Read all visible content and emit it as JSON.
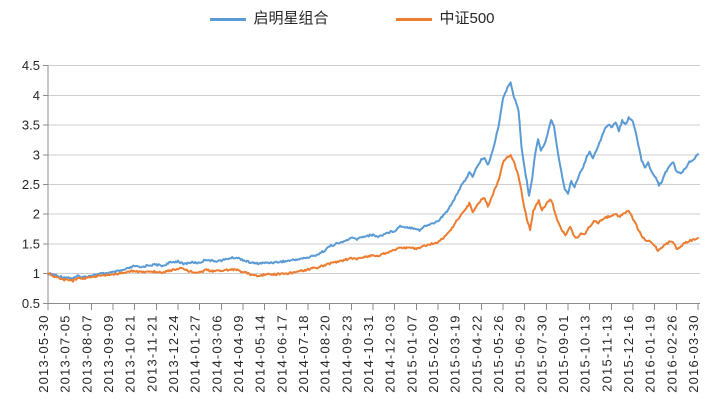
{
  "legend": {
    "items": [
      {
        "label": "启明星组合",
        "color": "#5B9BD5"
      },
      {
        "label": "中证500",
        "color": "#ED7D31"
      }
    ]
  },
  "chart_data": {
    "type": "line",
    "title": "",
    "xlabel": "",
    "ylabel": "",
    "grid": true,
    "legend_position": "top",
    "ylim": [
      0.5,
      4.5
    ],
    "ytick_step": 0.5,
    "ytick_labels": [
      "0.5",
      "1",
      "1.5",
      "2",
      "2.5",
      "3",
      "3.5",
      "4",
      "4.5"
    ],
    "categories": [
      "2013-05-30",
      "2013-07-05",
      "2013-08-07",
      "2013-09-09",
      "2013-10-21",
      "2013-11-21",
      "2013-12-24",
      "2014-01-27",
      "2014-03-06",
      "2014-04-09",
      "2014-05-14",
      "2014-06-17",
      "2014-07-18",
      "2014-08-20",
      "2014-09-23",
      "2014-10-31",
      "2014-12-03",
      "2015-01-07",
      "2015-02-09",
      "2015-03-19",
      "2015-04-22",
      "2015-05-26",
      "2015-06-29",
      "2015-07-30",
      "2015-09-01",
      "2015-10-13",
      "2015-11-13",
      "2015-12-16",
      "2016-01-19",
      "2016-02-26",
      "2016-03-30"
    ],
    "x_encoding": "points are [category_tick_index, net_value]; tick index 0 = 2013-05-30, 30 = 2016-03-30",
    "series": [
      {
        "name": "启明星组合",
        "color": "#5B9BD5",
        "points": [
          [
            0,
            1.0
          ],
          [
            0.2,
            0.99
          ],
          [
            0.45,
            0.96
          ],
          [
            0.7,
            0.94
          ],
          [
            1.0,
            0.93
          ],
          [
            1.15,
            0.92
          ],
          [
            1.4,
            0.96
          ],
          [
            1.6,
            0.94
          ],
          [
            2.0,
            0.97
          ],
          [
            2.5,
            1.0
          ],
          [
            3.0,
            1.02
          ],
          [
            3.5,
            1.06
          ],
          [
            3.8,
            1.1
          ],
          [
            4.0,
            1.13
          ],
          [
            4.25,
            1.1
          ],
          [
            4.6,
            1.14
          ],
          [
            5.0,
            1.15
          ],
          [
            5.3,
            1.13
          ],
          [
            5.6,
            1.18
          ],
          [
            6.0,
            1.21
          ],
          [
            6.25,
            1.16
          ],
          [
            6.6,
            1.19
          ],
          [
            7.0,
            1.18
          ],
          [
            7.3,
            1.24
          ],
          [
            7.6,
            1.21
          ],
          [
            8.0,
            1.22
          ],
          [
            8.4,
            1.26
          ],
          [
            8.7,
            1.27
          ],
          [
            9.0,
            1.23
          ],
          [
            9.3,
            1.19
          ],
          [
            9.6,
            1.17
          ],
          [
            10.0,
            1.18
          ],
          [
            10.5,
            1.19
          ],
          [
            11.0,
            1.21
          ],
          [
            11.5,
            1.24
          ],
          [
            12.0,
            1.27
          ],
          [
            12.5,
            1.33
          ],
          [
            12.8,
            1.4
          ],
          [
            13.0,
            1.46
          ],
          [
            13.3,
            1.5
          ],
          [
            13.6,
            1.53
          ],
          [
            14.0,
            1.6
          ],
          [
            14.25,
            1.58
          ],
          [
            14.6,
            1.63
          ],
          [
            15.0,
            1.65
          ],
          [
            15.25,
            1.62
          ],
          [
            15.6,
            1.68
          ],
          [
            16.0,
            1.72
          ],
          [
            16.25,
            1.8
          ],
          [
            16.6,
            1.78
          ],
          [
            17.0,
            1.76
          ],
          [
            17.15,
            1.73
          ],
          [
            17.4,
            1.8
          ],
          [
            17.7,
            1.84
          ],
          [
            18.0,
            1.88
          ],
          [
            18.35,
            2.02
          ],
          [
            18.7,
            2.22
          ],
          [
            19.0,
            2.43
          ],
          [
            19.3,
            2.6
          ],
          [
            19.45,
            2.72
          ],
          [
            19.6,
            2.62
          ],
          [
            19.8,
            2.8
          ],
          [
            20.0,
            2.92
          ],
          [
            20.15,
            2.95
          ],
          [
            20.3,
            2.82
          ],
          [
            20.55,
            3.1
          ],
          [
            20.8,
            3.5
          ],
          [
            21.0,
            3.95
          ],
          [
            21.15,
            4.08
          ],
          [
            21.35,
            4.23
          ],
          [
            21.5,
            3.98
          ],
          [
            21.62,
            3.85
          ],
          [
            21.72,
            3.74
          ],
          [
            21.85,
            3.15
          ],
          [
            22.0,
            2.76
          ],
          [
            22.1,
            2.55
          ],
          [
            22.2,
            2.32
          ],
          [
            22.35,
            2.62
          ],
          [
            22.5,
            3.05
          ],
          [
            22.62,
            3.27
          ],
          [
            22.75,
            3.07
          ],
          [
            22.95,
            3.2
          ],
          [
            23.1,
            3.42
          ],
          [
            23.22,
            3.6
          ],
          [
            23.35,
            3.48
          ],
          [
            23.5,
            3.12
          ],
          [
            23.68,
            2.74
          ],
          [
            23.85,
            2.42
          ],
          [
            24.0,
            2.35
          ],
          [
            24.15,
            2.56
          ],
          [
            24.3,
            2.46
          ],
          [
            24.5,
            2.65
          ],
          [
            24.7,
            2.8
          ],
          [
            24.88,
            2.98
          ],
          [
            25.0,
            3.06
          ],
          [
            25.15,
            2.93
          ],
          [
            25.35,
            3.12
          ],
          [
            25.5,
            3.25
          ],
          [
            25.7,
            3.45
          ],
          [
            25.9,
            3.5
          ],
          [
            26.0,
            3.46
          ],
          [
            26.2,
            3.55
          ],
          [
            26.35,
            3.4
          ],
          [
            26.5,
            3.58
          ],
          [
            26.65,
            3.5
          ],
          [
            26.8,
            3.63
          ],
          [
            27.0,
            3.55
          ],
          [
            27.2,
            3.25
          ],
          [
            27.4,
            2.9
          ],
          [
            27.55,
            2.8
          ],
          [
            27.7,
            2.86
          ],
          [
            27.85,
            2.72
          ],
          [
            28.0,
            2.65
          ],
          [
            28.2,
            2.49
          ],
          [
            28.35,
            2.56
          ],
          [
            28.5,
            2.7
          ],
          [
            28.7,
            2.82
          ],
          [
            28.85,
            2.88
          ],
          [
            29.0,
            2.72
          ],
          [
            29.2,
            2.68
          ],
          [
            29.4,
            2.77
          ],
          [
            29.6,
            2.88
          ],
          [
            29.8,
            2.93
          ],
          [
            30.0,
            3.01
          ]
        ]
      },
      {
        "name": "中证500",
        "color": "#ED7D31",
        "points": [
          [
            0,
            1.0
          ],
          [
            0.2,
            0.97
          ],
          [
            0.45,
            0.93
          ],
          [
            0.7,
            0.9
          ],
          [
            1.0,
            0.89
          ],
          [
            1.15,
            0.88
          ],
          [
            1.4,
            0.92
          ],
          [
            1.6,
            0.91
          ],
          [
            2.0,
            0.94
          ],
          [
            2.5,
            0.97
          ],
          [
            3.0,
            0.99
          ],
          [
            3.5,
            1.01
          ],
          [
            3.8,
            1.04
          ],
          [
            4.0,
            1.05
          ],
          [
            4.25,
            1.02
          ],
          [
            4.6,
            1.04
          ],
          [
            5.0,
            1.03
          ],
          [
            5.3,
            1.02
          ],
          [
            5.6,
            1.05
          ],
          [
            6.0,
            1.08
          ],
          [
            6.2,
            1.1
          ],
          [
            6.5,
            1.04
          ],
          [
            7.0,
            1.02
          ],
          [
            7.3,
            1.06
          ],
          [
            7.6,
            1.04
          ],
          [
            8.0,
            1.05
          ],
          [
            8.4,
            1.07
          ],
          [
            8.7,
            1.06
          ],
          [
            9.0,
            1.03
          ],
          [
            9.3,
            0.99
          ],
          [
            9.6,
            0.97
          ],
          [
            10.0,
            0.98
          ],
          [
            10.5,
            0.99
          ],
          [
            11.0,
            1.0
          ],
          [
            11.5,
            1.03
          ],
          [
            12.0,
            1.07
          ],
          [
            12.5,
            1.11
          ],
          [
            13.0,
            1.17
          ],
          [
            13.5,
            1.21
          ],
          [
            14.0,
            1.26
          ],
          [
            14.25,
            1.24
          ],
          [
            14.6,
            1.28
          ],
          [
            15.0,
            1.31
          ],
          [
            15.25,
            1.29
          ],
          [
            15.6,
            1.35
          ],
          [
            16.0,
            1.4
          ],
          [
            16.25,
            1.44
          ],
          [
            16.6,
            1.43
          ],
          [
            17.0,
            1.42
          ],
          [
            17.35,
            1.46
          ],
          [
            17.7,
            1.5
          ],
          [
            18.0,
            1.53
          ],
          [
            18.35,
            1.63
          ],
          [
            18.7,
            1.8
          ],
          [
            19.0,
            1.96
          ],
          [
            19.3,
            2.1
          ],
          [
            19.45,
            2.18
          ],
          [
            19.6,
            2.04
          ],
          [
            19.8,
            2.15
          ],
          [
            20.0,
            2.24
          ],
          [
            20.15,
            2.28
          ],
          [
            20.3,
            2.13
          ],
          [
            20.55,
            2.35
          ],
          [
            20.8,
            2.58
          ],
          [
            21.0,
            2.88
          ],
          [
            21.15,
            2.94
          ],
          [
            21.35,
            3.0
          ],
          [
            21.5,
            2.88
          ],
          [
            21.65,
            2.72
          ],
          [
            21.8,
            2.5
          ],
          [
            21.95,
            2.18
          ],
          [
            22.1,
            1.92
          ],
          [
            22.25,
            1.74
          ],
          [
            22.4,
            2.05
          ],
          [
            22.55,
            2.17
          ],
          [
            22.65,
            2.22
          ],
          [
            22.8,
            2.07
          ],
          [
            22.95,
            2.14
          ],
          [
            23.17,
            2.26
          ],
          [
            23.3,
            2.17
          ],
          [
            23.45,
            1.95
          ],
          [
            23.6,
            1.82
          ],
          [
            23.75,
            1.72
          ],
          [
            23.88,
            1.65
          ],
          [
            24.0,
            1.72
          ],
          [
            24.1,
            1.8
          ],
          [
            24.25,
            1.64
          ],
          [
            24.45,
            1.6
          ],
          [
            24.6,
            1.69
          ],
          [
            24.75,
            1.66
          ],
          [
            24.9,
            1.73
          ],
          [
            25.0,
            1.8
          ],
          [
            25.2,
            1.88
          ],
          [
            25.4,
            1.85
          ],
          [
            25.6,
            1.92
          ],
          [
            25.8,
            1.95
          ],
          [
            26.0,
            1.97
          ],
          [
            26.2,
            2.0
          ],
          [
            26.4,
            1.96
          ],
          [
            26.6,
            2.02
          ],
          [
            26.8,
            2.05
          ],
          [
            27.0,
            1.92
          ],
          [
            27.2,
            1.78
          ],
          [
            27.4,
            1.62
          ],
          [
            27.6,
            1.56
          ],
          [
            27.8,
            1.54
          ],
          [
            28.0,
            1.47
          ],
          [
            28.15,
            1.38
          ],
          [
            28.35,
            1.44
          ],
          [
            28.5,
            1.5
          ],
          [
            28.7,
            1.53
          ],
          [
            28.85,
            1.54
          ],
          [
            29.0,
            1.42
          ],
          [
            29.2,
            1.45
          ],
          [
            29.4,
            1.52
          ],
          [
            29.6,
            1.55
          ],
          [
            29.8,
            1.57
          ],
          [
            30.0,
            1.6
          ]
        ]
      }
    ],
    "style": {
      "gridline_color": "#CFCFCF",
      "axis_color": "#8C8C8C",
      "label_color": "#262626"
    }
  }
}
